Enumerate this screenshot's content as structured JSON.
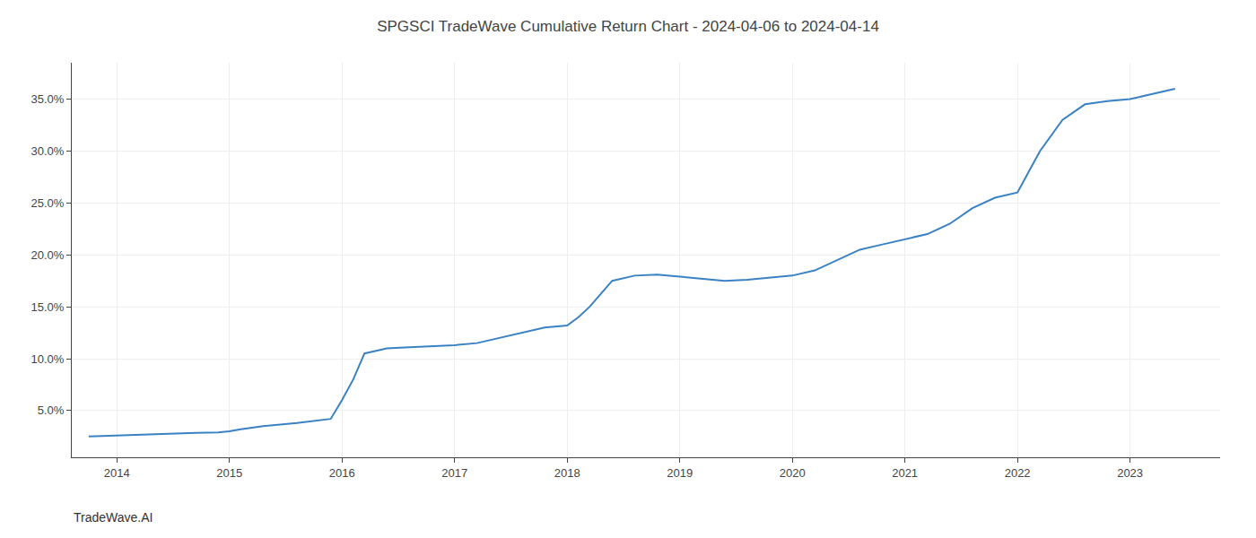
{
  "chart_data": {
    "type": "line",
    "title": "SPGSCI TradeWave Cumulative Return Chart - 2024-04-06 to 2024-04-14",
    "annotations": [
      "TradeWave.AI"
    ],
    "x": [
      2013.75,
      2014.0,
      2014.1,
      2014.2,
      2014.3,
      2014.5,
      2014.7,
      2014.9,
      2015.0,
      2015.1,
      2015.3,
      2015.6,
      2015.9,
      2016.0,
      2016.1,
      2016.2,
      2016.4,
      2016.6,
      2016.8,
      2017.0,
      2017.2,
      2017.4,
      2017.6,
      2017.8,
      2018.0,
      2018.1,
      2018.2,
      2018.4,
      2018.6,
      2018.8,
      2019.0,
      2019.2,
      2019.4,
      2019.6,
      2019.8,
      2020.0,
      2020.2,
      2020.4,
      2020.6,
      2020.8,
      2021.0,
      2021.2,
      2021.4,
      2021.6,
      2021.8,
      2022.0,
      2022.1,
      2022.2,
      2022.4,
      2022.6,
      2022.8,
      2023.0,
      2023.2,
      2023.4
    ],
    "values": [
      2.5,
      2.6,
      2.65,
      2.7,
      2.75,
      2.8,
      2.85,
      2.9,
      3.0,
      3.2,
      3.5,
      3.8,
      4.2,
      6.0,
      8.0,
      10.5,
      11.0,
      11.1,
      11.2,
      11.3,
      11.5,
      12.0,
      12.5,
      13.0,
      13.2,
      14.0,
      15.0,
      17.5,
      18.0,
      18.1,
      17.9,
      17.7,
      17.5,
      17.6,
      17.8,
      18.0,
      18.5,
      19.5,
      20.5,
      21.0,
      21.5,
      22.0,
      23.0,
      24.5,
      25.5,
      26.0,
      28.0,
      30.0,
      33.0,
      34.5,
      34.8,
      35.0,
      35.5,
      36.0
    ],
    "color": "#3a82c4",
    "xlim": [
      2013.6,
      2023.8
    ],
    "xticks": [
      2014,
      2015,
      2016,
      2017,
      2018,
      2019,
      2020,
      2021,
      2022,
      2023
    ],
    "ylim": [
      0.5,
      38.5
    ],
    "yticks": [
      {
        "value": 5.0,
        "label": "5.0%"
      },
      {
        "value": 10.0,
        "label": "10.0%"
      },
      {
        "value": 15.0,
        "label": "15.0%"
      },
      {
        "value": 20.0,
        "label": "20.0%"
      },
      {
        "value": 25.0,
        "label": "25.0%"
      },
      {
        "value": 30.0,
        "label": "30.0%"
      },
      {
        "value": 35.0,
        "label": "35.0%"
      }
    ],
    "grid": true
  }
}
